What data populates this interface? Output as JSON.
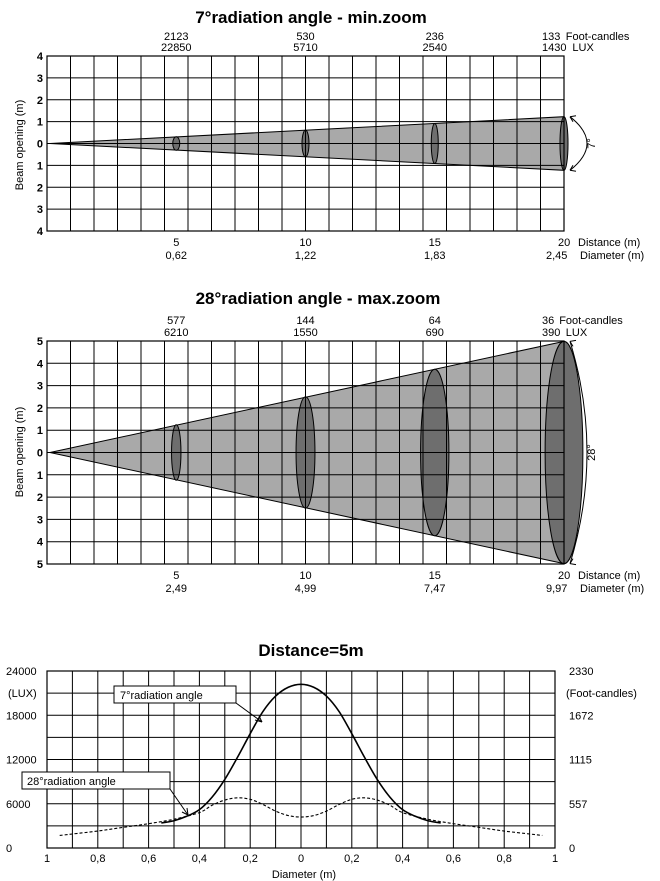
{
  "chart_data": [
    {
      "type": "diagram",
      "title": "7°radiation angle - min.zoom",
      "ylabel": "Beam opening (m)",
      "y_ticks": [
        "4",
        "3",
        "2",
        "1",
        "0",
        "1",
        "2",
        "3",
        "4"
      ],
      "ylim": [
        -4,
        4
      ],
      "xlim": [
        0,
        20
      ],
      "angle_label": "7°",
      "distances": [
        "5",
        "10",
        "15",
        "20"
      ],
      "diameters": [
        "0,62",
        "1,22",
        "1,83",
        "2,45"
      ],
      "diameter_values": [
        0.62,
        1.22,
        1.83,
        2.45
      ],
      "foot_candles": [
        "2123",
        "530",
        "236",
        "133"
      ],
      "lux": [
        "22850",
        "5710",
        "2540",
        "1430"
      ],
      "unit_fc": "Foot-candles",
      "unit_lux": "LUX",
      "distance_label": "Distance (m)",
      "diameter_label": "Diameter (m)"
    },
    {
      "type": "diagram",
      "title": "28°radiation angle - max.zoom",
      "ylabel": "Beam opening (m)",
      "y_ticks": [
        "5",
        "4",
        "3",
        "2",
        "1",
        "0",
        "1",
        "2",
        "3",
        "4",
        "5"
      ],
      "ylim": [
        -5,
        5
      ],
      "xlim": [
        0,
        20
      ],
      "angle_label": "28°",
      "distances": [
        "5",
        "10",
        "15",
        "20"
      ],
      "diameters": [
        "2,49",
        "4,99",
        "7,47",
        "9,97"
      ],
      "diameter_values": [
        2.49,
        4.99,
        7.47,
        9.97
      ],
      "foot_candles": [
        "577",
        "144",
        "64",
        "36"
      ],
      "lux": [
        "6210",
        "1550",
        "690",
        "390"
      ],
      "unit_fc": "Foot-candles",
      "unit_lux": "LUX",
      "distance_label": "Distance (m)",
      "diameter_label": "Diameter (m)"
    },
    {
      "type": "line",
      "title": "Distance=5m",
      "xlabel": "Diameter (m)",
      "x_ticks": [
        "1",
        "0,8",
        "0,6",
        "0,4",
        "0,2",
        "0",
        "0,2",
        "0,4",
        "0,6",
        "0,8",
        "1"
      ],
      "xlim": [
        -1,
        1
      ],
      "ylim": [
        0,
        24000
      ],
      "y_left_ticks": [
        "0",
        "6000",
        "12000",
        "18000",
        "24000"
      ],
      "y_left_values": [
        0,
        6000,
        12000,
        18000,
        24000
      ],
      "y_left_unit": "(LUX)",
      "y_right_ticks": [
        "0",
        "557",
        "1115",
        "1672",
        "2330"
      ],
      "y_right_unit": "(Foot-candles)",
      "series": [
        {
          "name": "7°radiation angle",
          "style": "solid",
          "x": [
            -0.55,
            -0.5,
            -0.45,
            -0.4,
            -0.35,
            -0.3,
            -0.25,
            -0.2,
            -0.15,
            -0.1,
            -0.05,
            0,
            0.05,
            0.1,
            0.15,
            0.2,
            0.25,
            0.3,
            0.35,
            0.4,
            0.45,
            0.5,
            0.55
          ],
          "y": [
            3400,
            3700,
            4300,
            5200,
            6900,
            9300,
            12300,
            15500,
            18500,
            20600,
            21800,
            22200,
            21800,
            20600,
            18500,
            15500,
            12300,
            9300,
            6900,
            5200,
            4300,
            3700,
            3400
          ]
        },
        {
          "name": "28°radiation angle",
          "style": "dashed",
          "x": [
            -0.95,
            -0.9,
            -0.8,
            -0.7,
            -0.6,
            -0.5,
            -0.4,
            -0.35,
            -0.3,
            -0.25,
            -0.2,
            -0.15,
            -0.1,
            -0.05,
            0,
            0.05,
            0.1,
            0.15,
            0.2,
            0.25,
            0.3,
            0.35,
            0.4,
            0.5,
            0.6,
            0.7,
            0.8,
            0.9,
            0.95
          ],
          "y": [
            1700,
            1900,
            2300,
            2800,
            3300,
            3900,
            4800,
            5800,
            6500,
            6800,
            6600,
            5900,
            5000,
            4400,
            4200,
            4400,
            5000,
            5900,
            6600,
            6800,
            6500,
            5800,
            4800,
            3900,
            3300,
            2800,
            2300,
            1900,
            1700
          ]
        }
      ]
    }
  ]
}
